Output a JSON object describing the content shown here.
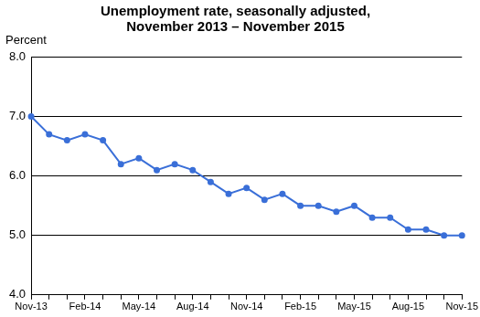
{
  "chart_data": {
    "type": "line",
    "title": [
      "Unemployment rate, seasonally adjusted,",
      "November 2013 – November 2015"
    ],
    "ylabel": "Percent",
    "categories": [
      "Nov-13",
      null,
      null,
      "Feb-14",
      null,
      null,
      "May-14",
      null,
      null,
      "Aug-14",
      null,
      null,
      "Nov-14",
      null,
      null,
      "Feb-15",
      null,
      null,
      "May-15",
      null,
      null,
      "Aug-15",
      null,
      null,
      "Nov-15"
    ],
    "values": [
      7.0,
      6.7,
      6.6,
      6.7,
      6.6,
      6.2,
      6.3,
      6.1,
      6.2,
      6.1,
      5.9,
      5.7,
      5.8,
      5.6,
      5.7,
      5.5,
      5.5,
      5.4,
      5.5,
      5.3,
      5.3,
      5.1,
      5.1,
      5.0,
      5.0
    ],
    "color": "#3a6fd8",
    "marker": "circle",
    "ylim": [
      4,
      8
    ],
    "yticks": [
      {
        "value": 4,
        "label": "4.0"
      },
      {
        "value": 5,
        "label": "5.0"
      },
      {
        "value": 6,
        "label": "6.0"
      },
      {
        "value": 7,
        "label": "7.0"
      },
      {
        "value": 8,
        "label": "8.0"
      }
    ],
    "grid": true
  }
}
